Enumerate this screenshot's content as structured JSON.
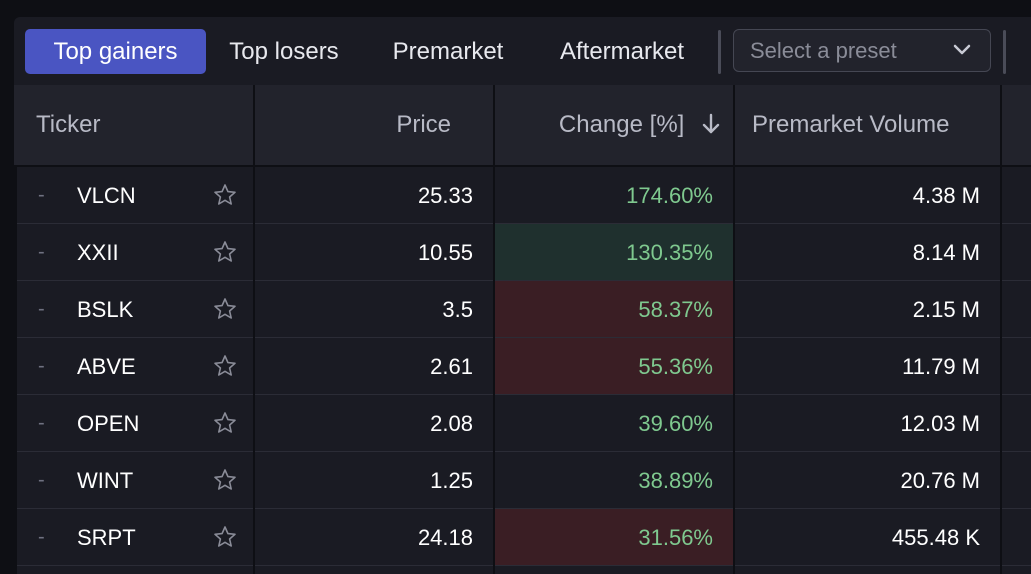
{
  "tabs": [
    {
      "label": "Top gainers",
      "active": true
    },
    {
      "label": "Top losers",
      "active": false
    },
    {
      "label": "Premarket",
      "active": false
    },
    {
      "label": "Aftermarket",
      "active": false
    }
  ],
  "preset": {
    "placeholder": "Select a preset"
  },
  "columns": {
    "ticker": "Ticker",
    "price": "Price",
    "change": "Change [%]",
    "volume": "Premarket Volume"
  },
  "sort": {
    "column": "change",
    "direction": "descending"
  },
  "rows": [
    {
      "dash": "-",
      "symbol": "VLCN",
      "price": "25.33",
      "change": "174.60%",
      "volume": "4.38 M",
      "highlight": "none"
    },
    {
      "dash": "-",
      "symbol": "XXII",
      "price": "10.55",
      "change": "130.35%",
      "volume": "8.14 M",
      "highlight": "green"
    },
    {
      "dash": "-",
      "symbol": "BSLK",
      "price": "3.5",
      "change": "58.37%",
      "volume": "2.15 M",
      "highlight": "red"
    },
    {
      "dash": "-",
      "symbol": "ABVE",
      "price": "2.61",
      "change": "55.36%",
      "volume": "11.79 M",
      "highlight": "red"
    },
    {
      "dash": "-",
      "symbol": "OPEN",
      "price": "2.08",
      "change": "39.60%",
      "volume": "12.03 M",
      "highlight": "none"
    },
    {
      "dash": "-",
      "symbol": "WINT",
      "price": "1.25",
      "change": "38.89%",
      "volume": "20.76 M",
      "highlight": "none"
    },
    {
      "dash": "-",
      "symbol": "SRPT",
      "price": "24.18",
      "change": "31.56%",
      "volume": "455.48 K",
      "highlight": "red"
    }
  ],
  "colors": {
    "accent": "#4a55c2",
    "positive_text": "#7fc98f",
    "highlight_green": "#1f302e",
    "highlight_red": "#3a1e24"
  }
}
